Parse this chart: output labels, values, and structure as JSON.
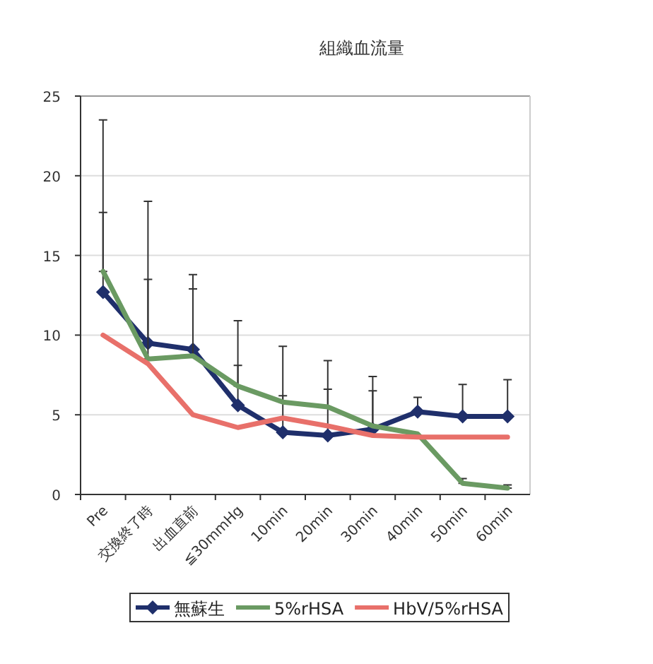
{
  "chart_data": {
    "type": "line",
    "title": "組織血流量",
    "categories": [
      "Pre",
      "交換終了時",
      "出血直前",
      "≦30mmHg",
      "10min",
      "20min",
      "30min",
      "40min",
      "50min",
      "60min"
    ],
    "ylim": [
      0,
      25
    ],
    "yticks": [
      0,
      5,
      10,
      15,
      20,
      25
    ],
    "grid": "y",
    "legend": "bottom",
    "line_style": "solid",
    "series": [
      {
        "name": "無蘇生",
        "color": "#1f2f6b",
        "marker": "diamond",
        "values": [
          12.7,
          9.5,
          9.1,
          5.6,
          3.9,
          3.7,
          4.1,
          5.2,
          4.9,
          4.9
        ],
        "errors": [
          [
            12.7,
            17.7
          ],
          [
            9.5,
            13.5
          ],
          [
            9.1,
            12.9
          ],
          [
            5.6,
            8.1
          ],
          [
            3.9,
            6.2
          ],
          [
            3.7,
            6.6
          ],
          [
            4.1,
            6.5
          ],
          [
            5.2,
            6.1
          ],
          [
            4.9,
            6.9
          ],
          [
            4.9,
            7.2
          ]
        ]
      },
      {
        "name": "5%rHSA",
        "color": "#6a9a62",
        "marker": "none",
        "values": [
          14.0,
          8.5,
          8.7,
          6.8,
          5.8,
          5.5,
          4.3,
          3.8,
          0.7,
          0.4
        ],
        "errors": [
          [
            14.0,
            23.5
          ],
          [
            8.5,
            18.4
          ],
          [
            8.7,
            13.8
          ],
          [
            6.8,
            10.9
          ],
          [
            5.8,
            9.3
          ],
          [
            5.5,
            8.4
          ],
          [
            4.3,
            7.4
          ],
          null,
          [
            0.7,
            1.0
          ],
          [
            0.4,
            0.6
          ]
        ]
      },
      {
        "name": "HbV/5%rHSA",
        "color": "#e8706a",
        "marker": "none",
        "values": [
          10.0,
          8.2,
          5.0,
          4.2,
          4.8,
          4.3,
          3.7,
          3.6,
          3.6,
          3.6
        ]
      }
    ]
  }
}
